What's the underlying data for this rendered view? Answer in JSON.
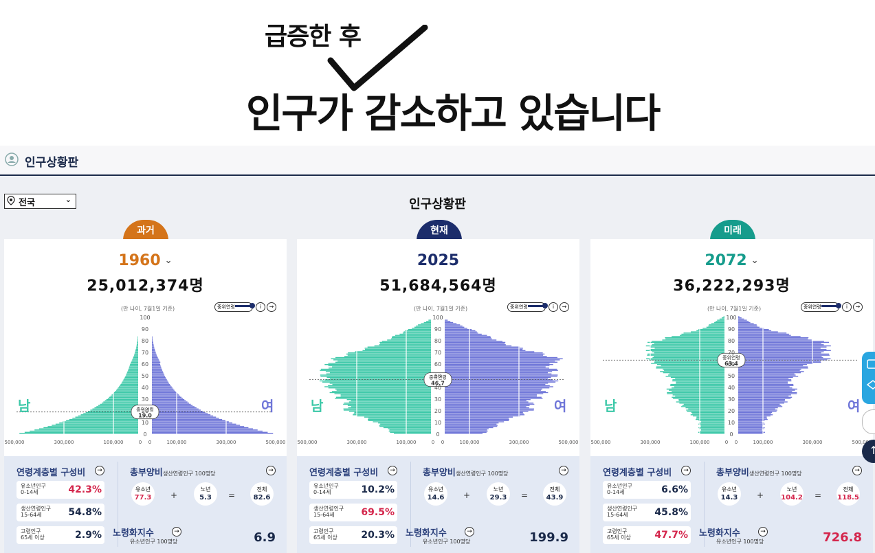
{
  "headline": {
    "line1": "급증한 후",
    "line2": "인구가 감소하고 있습니다"
  },
  "dashboard": {
    "title": "인구상황판",
    "center_title": "인구상황판",
    "region": "전국"
  },
  "colors": {
    "past": "#d4741a",
    "present": "#1c2d6b",
    "future": "#169c8c",
    "male": "#3cc8a8",
    "female": "#6e75d8",
    "pink": "#d4264c",
    "navy": "#1b2a4a"
  },
  "common": {
    "note": "(만 나이, 7월1일 기준)",
    "median_toggle": "중위연령",
    "median_label": "중위연령",
    "male": "남",
    "female": "여",
    "age_ticks": [
      "100",
      "90",
      "80",
      "70",
      "60",
      "50",
      "40",
      "30",
      "20",
      "10",
      "0"
    ],
    "x_ticks": [
      "500,000",
      "300,000",
      "100,000",
      "0",
      "0",
      "100,000",
      "300,000",
      "500,000"
    ],
    "comp_title": "연령계층별 구성비",
    "youth_label1": "유소년인구",
    "youth_label2": "0-14세",
    "working_label1": "생산연령인구",
    "working_label2": "15-64세",
    "elderly_label1": "고령인구",
    "elderly_label2": "65세 이상",
    "dep_title": "총부양비",
    "dep_sub": "생산연령인구 100명당",
    "youth": "유소년",
    "old": "노년",
    "total": "전체",
    "aging_title": "노령화지수",
    "aging_sub": "유소년인구 100명당"
  },
  "panels": [
    {
      "tab": "과거",
      "year": "1960",
      "dropdown": "⌄",
      "population": "25,012,374명",
      "median": "19.0",
      "youth_pct": "42.3%",
      "working_pct": "54.8%",
      "elderly_pct": "2.9%",
      "dep_youth": "77.3",
      "dep_op": "+",
      "dep_old": "5.3",
      "dep_total": "82.6",
      "aging": "6.9"
    },
    {
      "tab": "현재",
      "year": "2025",
      "dropdown": "",
      "population": "51,684,564명",
      "median": "46.7",
      "youth_pct": "10.2%",
      "working_pct": "69.5%",
      "elderly_pct": "20.3%",
      "dep_youth": "14.6",
      "dep_op": "+",
      "dep_old": "29.3",
      "dep_total": "43.9",
      "aging": "199.9"
    },
    {
      "tab": "미래",
      "year": "2072",
      "dropdown": "⌄",
      "population": "36,222,293명",
      "median": "63.4",
      "youth_pct": "6.6%",
      "working_pct": "45.8%",
      "elderly_pct": "47.7%",
      "dep_youth": "14.3",
      "dep_op": "+",
      "dep_old": "104.2",
      "dep_total": "118.5",
      "aging": "726.8"
    }
  ]
}
